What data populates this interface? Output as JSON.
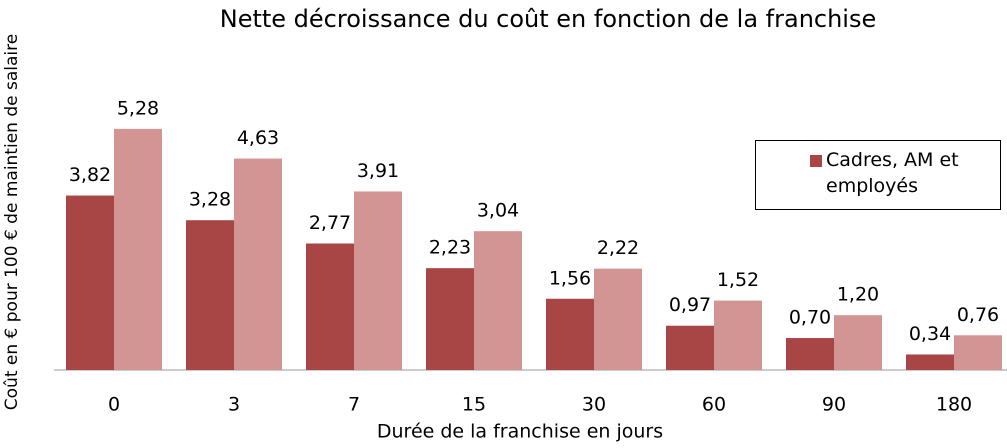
{
  "chart_data": {
    "type": "bar",
    "title": "Nette décroissance du coût en fonction de la franchise",
    "x_label": "Durée de la franchise en jours",
    "y_label": "Coût en € pour 100 € de maintien de salaire",
    "categories": [
      "0",
      "3",
      "7",
      "15",
      "30",
      "60",
      "90",
      "180"
    ],
    "series": [
      {
        "name": "Cadres, AM et employés",
        "color": "#a84646",
        "values": [
          3.82,
          3.28,
          2.77,
          2.23,
          1.56,
          0.97,
          0.7,
          0.34
        ],
        "value_labels": [
          "3,82",
          "3,28",
          "2,77",
          "2,23",
          "1,56",
          "0,97",
          "0,70",
          "0,34"
        ]
      },
      {
        "color": "#d39494",
        "values": [
          5.28,
          4.63,
          3.91,
          3.04,
          2.22,
          1.52,
          1.2,
          0.76
        ],
        "value_labels": [
          "5,28",
          "4,63",
          "3,91",
          "3,04",
          "2,22",
          "1,52",
          "1,20",
          "0,76"
        ]
      }
    ],
    "ylim": [
      0,
      6
    ],
    "legend": "right"
  }
}
